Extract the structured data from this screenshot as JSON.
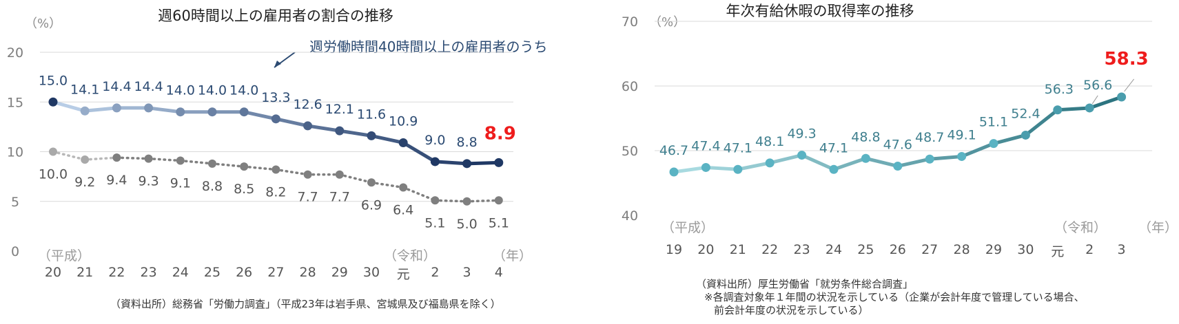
{
  "chart_data": [
    {
      "type": "line",
      "title": "週60時間以上の雇用者の割合の推移",
      "unit": "（%）",
      "ylim": [
        0,
        20
      ],
      "yticks": [
        "0",
        "5",
        "10",
        "15",
        "20"
      ],
      "categories": [
        "20",
        "21",
        "22",
        "23",
        "24",
        "25",
        "26",
        "27",
        "28",
        "29",
        "30",
        "元",
        "2",
        "3",
        "4"
      ],
      "era_labels": {
        "start": "（平成）",
        "reiwa": "（令和）",
        "year": "（年）"
      },
      "series": [
        {
          "name": "週労働時間40時間以上の雇用者のうち",
          "values": [
            15.0,
            14.1,
            14.4,
            14.4,
            14.0,
            14.0,
            14.0,
            13.3,
            12.6,
            12.1,
            11.6,
            10.9,
            9.0,
            8.8,
            8.9
          ],
          "labels": [
            "15.0",
            "14.1",
            "14.4",
            "14.4",
            "14.0",
            "14.0",
            "14.0",
            "13.3",
            "12.6",
            "12.1",
            "11.6",
            "10.9",
            "9.0",
            "8.8",
            "8.9"
          ],
          "color": "#2b4a72"
        },
        {
          "name": "",
          "values": [
            10.0,
            9.2,
            9.4,
            9.3,
            9.1,
            8.8,
            8.5,
            8.2,
            7.7,
            7.7,
            6.9,
            6.4,
            5.1,
            5.0,
            5.1
          ],
          "labels": [
            "10.0",
            "9.2",
            "9.4",
            "9.3",
            "9.1",
            "8.8",
            "8.5",
            "8.2",
            "7.7",
            "7.7",
            "6.9",
            "6.4",
            "5.1",
            "5.0",
            "5.1"
          ],
          "color": "#7f7f7f"
        }
      ],
      "grid": true,
      "source": "（資料出所）総務省「労働力調査」（平成23年は岩手県、宮城県及び福島県を除く）"
    },
    {
      "type": "line",
      "title": "年次有給休暇の取得率の推移",
      "unit": "（%）",
      "ylim": [
        40,
        70
      ],
      "yticks": [
        "40",
        "50",
        "60",
        "70"
      ],
      "categories": [
        "19",
        "20",
        "21",
        "22",
        "23",
        "24",
        "25",
        "26",
        "27",
        "28",
        "29",
        "30",
        "元",
        "2",
        "3"
      ],
      "era_labels": {
        "start": "（平成）",
        "reiwa": "（令和）",
        "year": "（年）"
      },
      "series": [
        {
          "name": "",
          "values": [
            46.7,
            47.4,
            47.1,
            48.1,
            49.3,
            47.1,
            48.8,
            47.6,
            48.7,
            49.1,
            51.1,
            52.4,
            56.3,
            56.6,
            58.3
          ],
          "labels": [
            "46.7",
            "47.4",
            "47.1",
            "48.1",
            "49.3",
            "47.1",
            "48.8",
            "47.6",
            "48.7",
            "49.1",
            "51.1",
            "52.4",
            "56.3",
            "56.6",
            "58.3"
          ],
          "color": "#3f8a9a"
        }
      ],
      "grid": true,
      "source": "（資料出所）厚生労働省「就労条件総合調査」",
      "notes": [
        "※各調査対象年１年間の状況を示している（企業が会計年度で管理している場合、",
        "前会計年度の状況を示している）"
      ]
    }
  ]
}
